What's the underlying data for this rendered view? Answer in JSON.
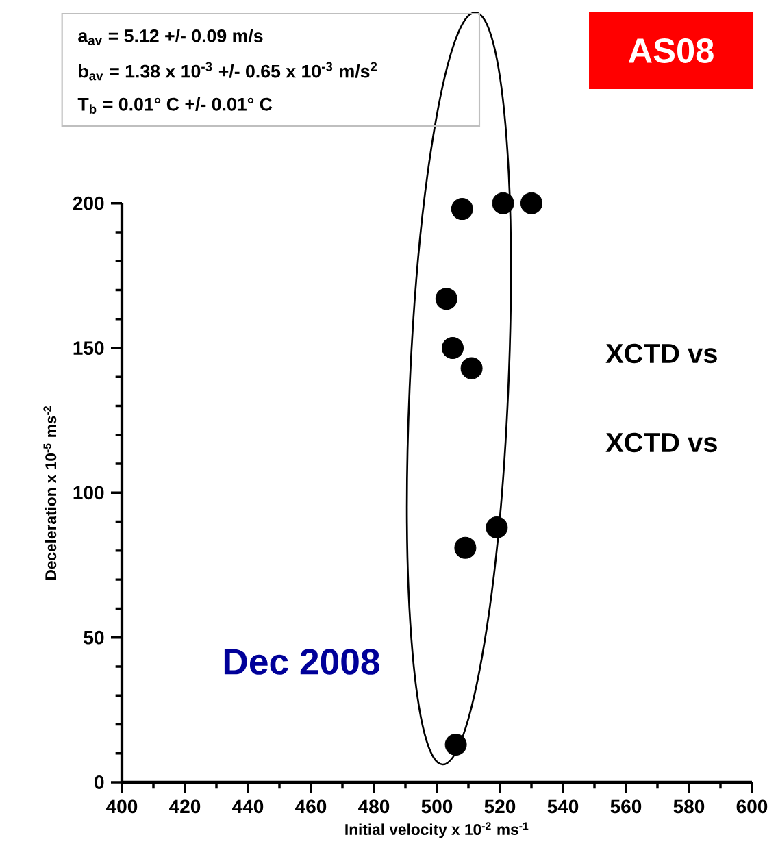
{
  "chart_data": {
    "type": "scatter",
    "xlabel": "Initial velocity x 10$^{-2}$ ms$^{-1}$",
    "ylabel": "Deceleration x 10$^{-5}$ ms$^{-2}$",
    "x": [
      508,
      521,
      530,
      503,
      505,
      511,
      519,
      509,
      506
    ],
    "values": [
      198,
      200,
      200,
      167,
      150,
      143,
      88,
      81,
      13
    ],
    "color": "#000000",
    "marker": "circle",
    "xlim": [
      400,
      600
    ],
    "ylim": [
      0,
      200
    ],
    "xticks": [
      400,
      420,
      440,
      460,
      480,
      500,
      520,
      540,
      560,
      580,
      600
    ],
    "yticks": [
      0,
      50,
      100,
      150,
      200
    ],
    "annotations": [
      "a$_{av}$ = 5.12 +/- 0.09 m/s",
      "b$_{av}$ =  1.38 x 10$^{-3}$ +/- 0.65 x 10$^{-3}$ m/s$^{2}$",
      "T$_{b}$ = 0.01° C +/- 0.01° C",
      "AS08",
      "XCTD vs",
      "XCTD vs",
      "Dec 2008"
    ]
  }
}
